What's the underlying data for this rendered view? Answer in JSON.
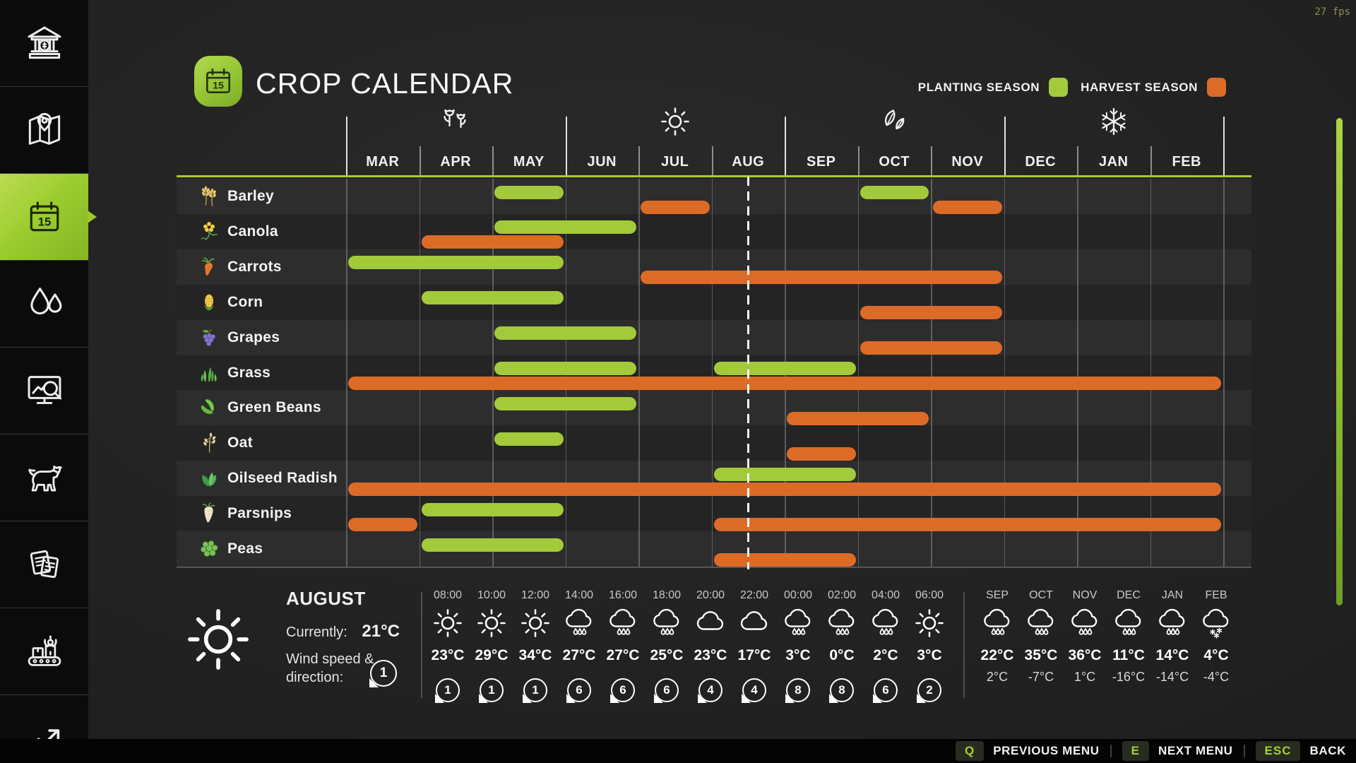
{
  "fps_counter": "27 fps",
  "sidebar": {
    "items": [
      {
        "name": "finances",
        "icon": "finances-icon",
        "active": false
      },
      {
        "name": "map",
        "icon": "map-icon",
        "active": false
      },
      {
        "name": "crop-calendar",
        "icon": "calendar-icon",
        "active": true
      },
      {
        "name": "soil-moisture",
        "icon": "soil-moisture-icon",
        "active": false
      },
      {
        "name": "prices",
        "icon": "prices-icon",
        "active": false
      },
      {
        "name": "animals",
        "icon": "animals-icon",
        "active": false
      },
      {
        "name": "contracts",
        "icon": "contracts-icon",
        "active": false
      },
      {
        "name": "production",
        "icon": "production-icon",
        "active": false
      },
      {
        "name": "statistics",
        "icon": "statistics-icon",
        "active": false
      }
    ]
  },
  "header": {
    "title": "CROP CALENDAR",
    "legend": [
      {
        "label": "PLANTING SEASON",
        "color": "#a3ca3a"
      },
      {
        "label": "HARVEST SEASON",
        "color": "#dd6b28"
      }
    ]
  },
  "chart_data": {
    "type": "gantt",
    "title": "CROP CALENDAR",
    "months": [
      "MAR",
      "APR",
      "MAY",
      "JUN",
      "JUL",
      "AUG",
      "SEP",
      "OCT",
      "NOV",
      "DEC",
      "JAN",
      "FEB"
    ],
    "seasons": [
      {
        "name": "spring",
        "icon": "spring-icon",
        "month_index": 1
      },
      {
        "name": "summer",
        "icon": "summer-icon",
        "month_index": 4
      },
      {
        "name": "autumn",
        "icon": "autumn-icon",
        "month_index": 7
      },
      {
        "name": "winter",
        "icon": "winter-icon",
        "month_index": 10
      }
    ],
    "colors": {
      "planting": "#a3ca3a",
      "harvest": "#dd6b28"
    },
    "today_month_fraction": 5.5,
    "crops": [
      {
        "name": "Barley",
        "icon": "barley-icon",
        "planting": [
          [
            2,
            2
          ],
          [
            7,
            7
          ]
        ],
        "harvest": [
          [
            4,
            4
          ],
          [
            8,
            8
          ]
        ]
      },
      {
        "name": "Canola",
        "icon": "canola-icon",
        "planting": [
          [
            2,
            3
          ]
        ],
        "harvest": [
          [
            1,
            2
          ]
        ]
      },
      {
        "name": "Carrots",
        "icon": "carrots-icon",
        "planting": [
          [
            0,
            2
          ]
        ],
        "harvest": [
          [
            4,
            8
          ]
        ]
      },
      {
        "name": "Corn",
        "icon": "corn-icon",
        "planting": [
          [
            1,
            2
          ]
        ],
        "harvest": [
          [
            7,
            8
          ]
        ]
      },
      {
        "name": "Grapes",
        "icon": "grapes-icon",
        "planting": [
          [
            2,
            3
          ]
        ],
        "harvest": [
          [
            7,
            8
          ]
        ]
      },
      {
        "name": "Grass",
        "icon": "grass-icon",
        "planting": [
          [
            2,
            3
          ],
          [
            5,
            6
          ]
        ],
        "harvest": [
          [
            0,
            11
          ]
        ]
      },
      {
        "name": "Green Beans",
        "icon": "green-beans-icon",
        "planting": [
          [
            2,
            3
          ]
        ],
        "harvest": [
          [
            6,
            7
          ]
        ]
      },
      {
        "name": "Oat",
        "icon": "oat-icon",
        "planting": [
          [
            2,
            2
          ]
        ],
        "harvest": [
          [
            6,
            6
          ]
        ]
      },
      {
        "name": "Oilseed Radish",
        "icon": "oilseed-radish-icon",
        "planting": [
          [
            5,
            6
          ]
        ],
        "harvest": [
          [
            0,
            11
          ]
        ]
      },
      {
        "name": "Parsnips",
        "icon": "parsnips-icon",
        "planting": [
          [
            1,
            2
          ]
        ],
        "harvest": [
          [
            0,
            0
          ],
          [
            5,
            11
          ]
        ]
      },
      {
        "name": "Peas",
        "icon": "peas-icon",
        "planting": [
          [
            1,
            2
          ]
        ],
        "harvest": [
          [
            5,
            6
          ]
        ]
      }
    ]
  },
  "weather": {
    "current": {
      "month": "AUGUST",
      "condition_icon": "sun-icon",
      "currently_label": "Currently:",
      "temperature": "21°C",
      "wind_label_line1": "Wind speed &",
      "wind_label_line2": "direction:",
      "wind_value": "1"
    },
    "hourly": [
      {
        "time": "08:00",
        "icon": "sun-icon",
        "temp": "23°C",
        "wind": "1"
      },
      {
        "time": "10:00",
        "icon": "sun-icon",
        "temp": "29°C",
        "wind": "1"
      },
      {
        "time": "12:00",
        "icon": "sun-icon",
        "temp": "34°C",
        "wind": "1"
      },
      {
        "time": "14:00",
        "icon": "rain-icon",
        "temp": "27°C",
        "wind": "6"
      },
      {
        "time": "16:00",
        "icon": "rain-icon",
        "temp": "27°C",
        "wind": "6"
      },
      {
        "time": "18:00",
        "icon": "rain-icon",
        "temp": "25°C",
        "wind": "6"
      },
      {
        "time": "20:00",
        "icon": "cloud-icon",
        "temp": "23°C",
        "wind": "4"
      },
      {
        "time": "22:00",
        "icon": "cloud-icon",
        "temp": "17°C",
        "wind": "4"
      },
      {
        "time": "00:00",
        "icon": "rain-icon",
        "temp": "3°C",
        "wind": "8"
      },
      {
        "time": "02:00",
        "icon": "rain-icon",
        "temp": "0°C",
        "wind": "8"
      },
      {
        "time": "04:00",
        "icon": "rain-icon",
        "temp": "2°C",
        "wind": "6"
      },
      {
        "time": "06:00",
        "icon": "sun-icon",
        "temp": "3°C",
        "wind": "2"
      }
    ],
    "monthly": [
      {
        "month": "SEP",
        "icon": "rain-icon",
        "high": "22°C",
        "low": "2°C"
      },
      {
        "month": "OCT",
        "icon": "rain-icon",
        "high": "35°C",
        "low": "-7°C"
      },
      {
        "month": "NOV",
        "icon": "rain-icon",
        "high": "36°C",
        "low": "1°C"
      },
      {
        "month": "DEC",
        "icon": "rain-icon",
        "high": "11°C",
        "low": "-16°C"
      },
      {
        "month": "JAN",
        "icon": "rain-icon",
        "high": "14°C",
        "low": "-14°C"
      },
      {
        "month": "FEB",
        "icon": "snow-icon",
        "high": "4°C",
        "low": "-4°C"
      }
    ]
  },
  "footer": {
    "hints": [
      {
        "key": "Q",
        "label": "PREVIOUS MENU"
      },
      {
        "key": "E",
        "label": "NEXT MENU"
      },
      {
        "key": "ESC",
        "label": "BACK"
      }
    ]
  }
}
